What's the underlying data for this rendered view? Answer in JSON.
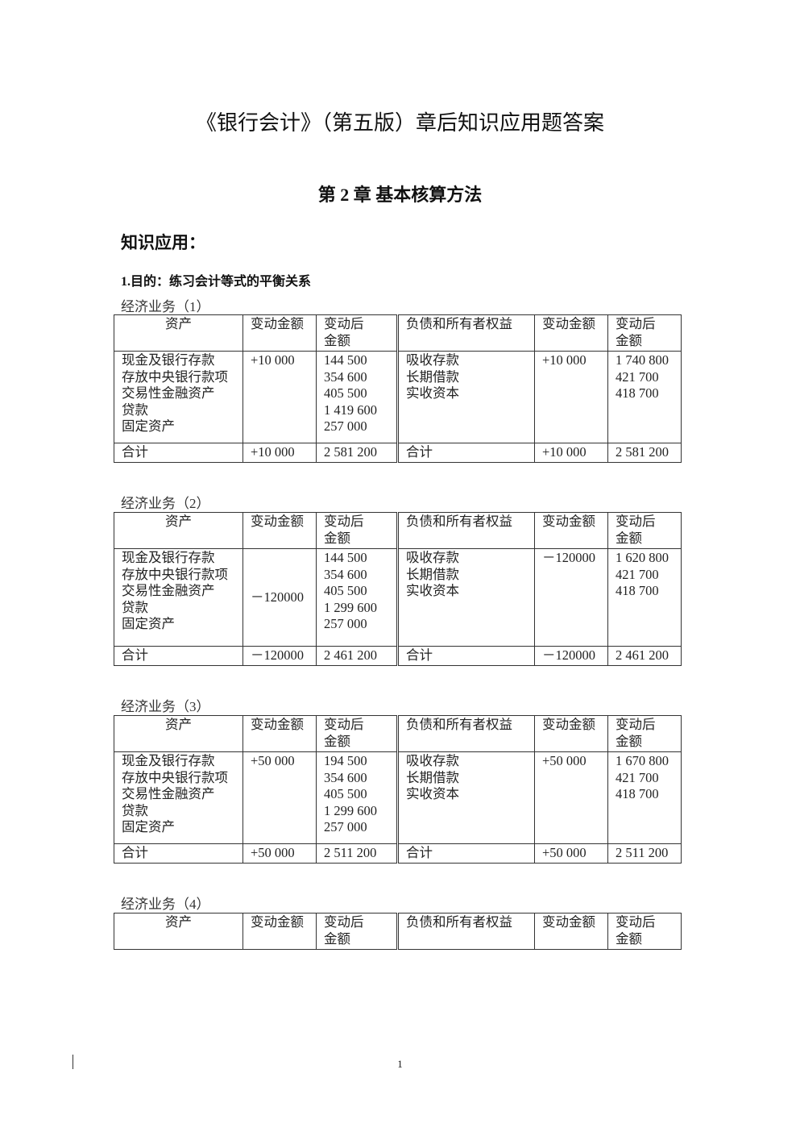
{
  "title": "《银行会计》（第五版）章后知识应用题答案",
  "chapter": "第 2 章 基本核算方法",
  "section": "知识应用：",
  "purpose": "1.目的：练习会计等式的平衡关系",
  "headers": [
    "资产",
    "变动金额",
    "变动后\n金额",
    "负债和所有者权益",
    "变动金额",
    "变动后\n金额"
  ],
  "assets": [
    "现金及银行存款",
    "存放中央银行款项",
    "交易性金融资产",
    "贷款",
    "固定资产"
  ],
  "liabilities": [
    "吸收存款",
    "长期借款",
    "实收资本"
  ],
  "total_label": "合计",
  "tables": [
    {
      "caption": "经济业务（1）",
      "asset_change": "+10 000",
      "asset_change_middle": false,
      "asset_values": [
        "144 500",
        "354 600",
        "405 500",
        "1 419 600",
        "257 000"
      ],
      "liab_change": "+10 000",
      "liab_values": [
        "1 740 800",
        "421 700",
        "418 700"
      ],
      "total_asset_change": "+10 000",
      "total_assets": "2 581 200",
      "total_liab_change": "+10 000",
      "total_liab": "2 581 200"
    },
    {
      "caption": "经济业务（2）",
      "asset_change": "－120000",
      "asset_change_middle": true,
      "asset_values": [
        "144 500",
        "354 600",
        "405 500",
        "1 299 600",
        "257 000"
      ],
      "liab_change": "－120000",
      "liab_values": [
        "1 620 800",
        "421 700",
        "418 700"
      ],
      "total_asset_change": "－120000",
      "total_assets": "2 461 200",
      "total_liab_change": "－120000",
      "total_liab": "2 461 200"
    },
    {
      "caption": "经济业务（3）",
      "asset_change": "+50 000",
      "asset_change_middle": false,
      "asset_values": [
        "194 500",
        "354 600",
        "405 500",
        "1 299 600",
        "257 000"
      ],
      "liab_change": "+50 000",
      "liab_values": [
        "1 670 800",
        "421 700",
        "418 700"
      ],
      "total_asset_change": "+50 000",
      "total_assets": "2 511 200",
      "total_liab_change": "+50 000",
      "total_liab": "2 511 200"
    },
    {
      "caption": "经济业务（4）"
    }
  ],
  "page_number": "1"
}
